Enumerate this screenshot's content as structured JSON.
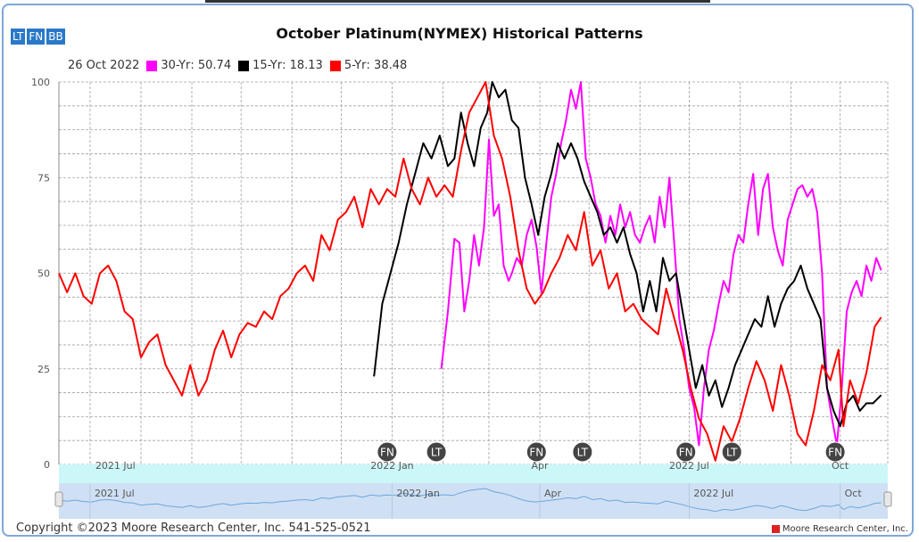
{
  "toolbar": {
    "buttons": [
      {
        "label": "LT"
      },
      {
        "label": "FN"
      },
      {
        "label": "BB"
      }
    ]
  },
  "footer": {
    "copyright": "Copyright ©2023 Moore Research Center, Inc. 541-525-0521",
    "credit": "Moore Research Center, Inc."
  },
  "colors": {
    "y30": "#ff00ff",
    "y15": "#000000",
    "y5": "#ff0000",
    "navigator_band": "#ccf7f9",
    "navigator_fill": "#cfe0f4",
    "navigator_line": "#6aa6dc",
    "marker": "#444444"
  },
  "chart_data": {
    "type": "line",
    "title": "October Platinum(NYMEX) Historical Patterns",
    "legend_date": "26 Oct 2022",
    "legend_placement": "top-left",
    "grid": true,
    "ylim": [
      0,
      100
    ],
    "yticks": [
      "0",
      "25",
      "50",
      "75",
      "100"
    ],
    "xlim": [
      "2021-06-12",
      "2022-10-30"
    ],
    "xticks": [
      {
        "date": "2021-07-01",
        "label": "2021 Jul"
      },
      {
        "date": "2022-01-01",
        "label": "2022 Jan"
      },
      {
        "date": "2022-04-01",
        "label": "Apr"
      },
      {
        "date": "2022-07-01",
        "label": "2022 Jul"
      },
      {
        "date": "2022-10-01",
        "label": "Oct"
      }
    ],
    "navigator_ticks": [
      "2021 Jul",
      "2022 Jan",
      "Apr",
      "2022 Jul",
      "Oct"
    ],
    "markers": [
      {
        "label": "FN",
        "date": "2021-12-29"
      },
      {
        "label": "LT",
        "date": "2022-01-28"
      },
      {
        "label": "FN",
        "date": "2022-03-30"
      },
      {
        "label": "LT",
        "date": "2022-04-27"
      },
      {
        "label": "FN",
        "date": "2022-06-29"
      },
      {
        "label": "LT",
        "date": "2022-07-27"
      },
      {
        "label": "FN",
        "date": "2022-09-28"
      }
    ],
    "series": [
      {
        "name": "30-Yr",
        "value": "50.74",
        "color": "#ff00ff",
        "points": [
          [
            "2022-01-31",
            25
          ],
          [
            "2022-02-04",
            40
          ],
          [
            "2022-02-08",
            59
          ],
          [
            "2022-02-11",
            58
          ],
          [
            "2022-02-14",
            40
          ],
          [
            "2022-02-17",
            48
          ],
          [
            "2022-02-20",
            60
          ],
          [
            "2022-02-23",
            52
          ],
          [
            "2022-02-26",
            62
          ],
          [
            "2022-03-01",
            85
          ],
          [
            "2022-03-04",
            65
          ],
          [
            "2022-03-07",
            68
          ],
          [
            "2022-03-10",
            52
          ],
          [
            "2022-03-13",
            48
          ],
          [
            "2022-03-15",
            50
          ],
          [
            "2022-03-18",
            54
          ],
          [
            "2022-03-21",
            52
          ],
          [
            "2022-03-24",
            60
          ],
          [
            "2022-03-27",
            64
          ],
          [
            "2022-03-30",
            57
          ],
          [
            "2022-04-02",
            45
          ],
          [
            "2022-04-05",
            58
          ],
          [
            "2022-04-08",
            70
          ],
          [
            "2022-04-11",
            76
          ],
          [
            "2022-04-14",
            84
          ],
          [
            "2022-04-17",
            90
          ],
          [
            "2022-04-20",
            98
          ],
          [
            "2022-04-23",
            93
          ],
          [
            "2022-04-26",
            100
          ],
          [
            "2022-04-29",
            80
          ],
          [
            "2022-05-02",
            75
          ],
          [
            "2022-05-05",
            68
          ],
          [
            "2022-05-08",
            65
          ],
          [
            "2022-05-11",
            58
          ],
          [
            "2022-05-14",
            65
          ],
          [
            "2022-05-17",
            60
          ],
          [
            "2022-05-20",
            68
          ],
          [
            "2022-05-23",
            62
          ],
          [
            "2022-05-26",
            66
          ],
          [
            "2022-05-29",
            60
          ],
          [
            "2022-06-01",
            58
          ],
          [
            "2022-06-04",
            62
          ],
          [
            "2022-06-07",
            65
          ],
          [
            "2022-06-10",
            58
          ],
          [
            "2022-06-13",
            70
          ],
          [
            "2022-06-16",
            62
          ],
          [
            "2022-06-19",
            75
          ],
          [
            "2022-06-22",
            57
          ],
          [
            "2022-06-25",
            38
          ],
          [
            "2022-06-28",
            30
          ],
          [
            "2022-07-01",
            20
          ],
          [
            "2022-07-04",
            15
          ],
          [
            "2022-07-07",
            5
          ],
          [
            "2022-07-10",
            20
          ],
          [
            "2022-07-13",
            30
          ],
          [
            "2022-07-16",
            35
          ],
          [
            "2022-07-19",
            42
          ],
          [
            "2022-07-22",
            48
          ],
          [
            "2022-07-25",
            45
          ],
          [
            "2022-07-28",
            55
          ],
          [
            "2022-07-31",
            60
          ],
          [
            "2022-08-03",
            58
          ],
          [
            "2022-08-06",
            68
          ],
          [
            "2022-08-09",
            76
          ],
          [
            "2022-08-12",
            60
          ],
          [
            "2022-08-15",
            72
          ],
          [
            "2022-08-18",
            76
          ],
          [
            "2022-08-21",
            62
          ],
          [
            "2022-08-24",
            56
          ],
          [
            "2022-08-27",
            52
          ],
          [
            "2022-08-30",
            64
          ],
          [
            "2022-09-02",
            68
          ],
          [
            "2022-09-05",
            72
          ],
          [
            "2022-09-08",
            73
          ],
          [
            "2022-09-11",
            70
          ],
          [
            "2022-09-14",
            72
          ],
          [
            "2022-09-17",
            66
          ],
          [
            "2022-09-20",
            50
          ],
          [
            "2022-09-23",
            20
          ],
          [
            "2022-09-26",
            12
          ],
          [
            "2022-09-29",
            5
          ],
          [
            "2022-10-02",
            20
          ],
          [
            "2022-10-05",
            40
          ],
          [
            "2022-10-08",
            45
          ],
          [
            "2022-10-11",
            48
          ],
          [
            "2022-10-14",
            44
          ],
          [
            "2022-10-17",
            52
          ],
          [
            "2022-10-20",
            48
          ],
          [
            "2022-10-23",
            54
          ],
          [
            "2022-10-26",
            50.74
          ]
        ]
      },
      {
        "name": "15-Yr",
        "value": "18.13",
        "color": "#000000",
        "points": [
          [
            "2021-12-21",
            23
          ],
          [
            "2021-12-26",
            42
          ],
          [
            "2021-12-31",
            50
          ],
          [
            "2022-01-05",
            58
          ],
          [
            "2022-01-10",
            68
          ],
          [
            "2022-01-15",
            76
          ],
          [
            "2022-01-20",
            84
          ],
          [
            "2022-01-25",
            80
          ],
          [
            "2022-01-30",
            86
          ],
          [
            "2022-02-04",
            78
          ],
          [
            "2022-02-08",
            80
          ],
          [
            "2022-02-12",
            92
          ],
          [
            "2022-02-16",
            84
          ],
          [
            "2022-02-20",
            78
          ],
          [
            "2022-02-24",
            88
          ],
          [
            "2022-02-28",
            92
          ],
          [
            "2022-03-03",
            100
          ],
          [
            "2022-03-07",
            96
          ],
          [
            "2022-03-11",
            98
          ],
          [
            "2022-03-15",
            90
          ],
          [
            "2022-03-19",
            88
          ],
          [
            "2022-03-23",
            75
          ],
          [
            "2022-03-27",
            68
          ],
          [
            "2022-03-31",
            60
          ],
          [
            "2022-04-04",
            70
          ],
          [
            "2022-04-08",
            76
          ],
          [
            "2022-04-12",
            84
          ],
          [
            "2022-04-16",
            80
          ],
          [
            "2022-04-20",
            84
          ],
          [
            "2022-04-24",
            80
          ],
          [
            "2022-04-28",
            74
          ],
          [
            "2022-05-02",
            70
          ],
          [
            "2022-05-06",
            66
          ],
          [
            "2022-05-10",
            60
          ],
          [
            "2022-05-14",
            62
          ],
          [
            "2022-05-18",
            58
          ],
          [
            "2022-05-22",
            62
          ],
          [
            "2022-05-26",
            55
          ],
          [
            "2022-05-30",
            50
          ],
          [
            "2022-06-03",
            40
          ],
          [
            "2022-06-07",
            48
          ],
          [
            "2022-06-11",
            40
          ],
          [
            "2022-06-15",
            54
          ],
          [
            "2022-06-19",
            48
          ],
          [
            "2022-06-23",
            50
          ],
          [
            "2022-06-27",
            40
          ],
          [
            "2022-07-01",
            30
          ],
          [
            "2022-07-05",
            20
          ],
          [
            "2022-07-09",
            26
          ],
          [
            "2022-07-13",
            18
          ],
          [
            "2022-07-17",
            22
          ],
          [
            "2022-07-21",
            15
          ],
          [
            "2022-07-25",
            20
          ],
          [
            "2022-07-29",
            26
          ],
          [
            "2022-08-02",
            30
          ],
          [
            "2022-08-06",
            34
          ],
          [
            "2022-08-10",
            38
          ],
          [
            "2022-08-14",
            36
          ],
          [
            "2022-08-18",
            44
          ],
          [
            "2022-08-22",
            36
          ],
          [
            "2022-08-26",
            42
          ],
          [
            "2022-08-30",
            46
          ],
          [
            "2022-09-03",
            48
          ],
          [
            "2022-09-07",
            52
          ],
          [
            "2022-09-11",
            46
          ],
          [
            "2022-09-15",
            42
          ],
          [
            "2022-09-19",
            38
          ],
          [
            "2022-09-23",
            20
          ],
          [
            "2022-09-27",
            14
          ],
          [
            "2022-10-01",
            10
          ],
          [
            "2022-10-05",
            16
          ],
          [
            "2022-10-09",
            18
          ],
          [
            "2022-10-13",
            14
          ],
          [
            "2022-10-17",
            16
          ],
          [
            "2022-10-21",
            16
          ],
          [
            "2022-10-26",
            18.13
          ]
        ]
      },
      {
        "name": "5-Yr",
        "value": "38.48",
        "color": "#ff0000",
        "points": [
          [
            "2021-06-12",
            50
          ],
          [
            "2021-06-17",
            45
          ],
          [
            "2021-06-22",
            50
          ],
          [
            "2021-06-27",
            44
          ],
          [
            "2021-07-02",
            42
          ],
          [
            "2021-07-07",
            50
          ],
          [
            "2021-07-12",
            52
          ],
          [
            "2021-07-17",
            48
          ],
          [
            "2021-07-22",
            40
          ],
          [
            "2021-07-27",
            38
          ],
          [
            "2021-08-01",
            28
          ],
          [
            "2021-08-06",
            32
          ],
          [
            "2021-08-11",
            34
          ],
          [
            "2021-08-16",
            26
          ],
          [
            "2021-08-21",
            22
          ],
          [
            "2021-08-26",
            18
          ],
          [
            "2021-08-31",
            26
          ],
          [
            "2021-09-05",
            18
          ],
          [
            "2021-09-10",
            22
          ],
          [
            "2021-09-15",
            30
          ],
          [
            "2021-09-20",
            35
          ],
          [
            "2021-09-25",
            28
          ],
          [
            "2021-09-30",
            34
          ],
          [
            "2021-10-05",
            37
          ],
          [
            "2021-10-10",
            36
          ],
          [
            "2021-10-15",
            40
          ],
          [
            "2021-10-20",
            38
          ],
          [
            "2021-10-25",
            44
          ],
          [
            "2021-10-30",
            46
          ],
          [
            "2021-11-04",
            50
          ],
          [
            "2021-11-09",
            52
          ],
          [
            "2021-11-14",
            48
          ],
          [
            "2021-11-19",
            60
          ],
          [
            "2021-11-24",
            56
          ],
          [
            "2021-11-29",
            64
          ],
          [
            "2021-12-04",
            66
          ],
          [
            "2021-12-09",
            70
          ],
          [
            "2021-12-14",
            62
          ],
          [
            "2021-12-19",
            72
          ],
          [
            "2021-12-24",
            68
          ],
          [
            "2021-12-29",
            72
          ],
          [
            "2022-01-03",
            70
          ],
          [
            "2022-01-08",
            80
          ],
          [
            "2022-01-13",
            72
          ],
          [
            "2022-01-18",
            68
          ],
          [
            "2022-01-23",
            75
          ],
          [
            "2022-01-28",
            70
          ],
          [
            "2022-02-02",
            73
          ],
          [
            "2022-02-07",
            70
          ],
          [
            "2022-02-12",
            82
          ],
          [
            "2022-02-17",
            92
          ],
          [
            "2022-02-22",
            96
          ],
          [
            "2022-02-27",
            100
          ],
          [
            "2022-03-04",
            86
          ],
          [
            "2022-03-09",
            80
          ],
          [
            "2022-03-14",
            70
          ],
          [
            "2022-03-19",
            56
          ],
          [
            "2022-03-24",
            46
          ],
          [
            "2022-03-29",
            42
          ],
          [
            "2022-04-03",
            45
          ],
          [
            "2022-04-08",
            50
          ],
          [
            "2022-04-13",
            54
          ],
          [
            "2022-04-18",
            60
          ],
          [
            "2022-04-23",
            56
          ],
          [
            "2022-04-28",
            66
          ],
          [
            "2022-05-03",
            52
          ],
          [
            "2022-05-08",
            56
          ],
          [
            "2022-05-13",
            46
          ],
          [
            "2022-05-18",
            50
          ],
          [
            "2022-05-23",
            40
          ],
          [
            "2022-05-28",
            42
          ],
          [
            "2022-06-02",
            38
          ],
          [
            "2022-06-07",
            36
          ],
          [
            "2022-06-12",
            34
          ],
          [
            "2022-06-17",
            46
          ],
          [
            "2022-06-22",
            38
          ],
          [
            "2022-06-27",
            30
          ],
          [
            "2022-07-02",
            20
          ],
          [
            "2022-07-07",
            12
          ],
          [
            "2022-07-12",
            8
          ],
          [
            "2022-07-17",
            1
          ],
          [
            "2022-07-22",
            10
          ],
          [
            "2022-07-27",
            6
          ],
          [
            "2022-08-01",
            12
          ],
          [
            "2022-08-06",
            20
          ],
          [
            "2022-08-11",
            27
          ],
          [
            "2022-08-16",
            22
          ],
          [
            "2022-08-21",
            14
          ],
          [
            "2022-08-26",
            26
          ],
          [
            "2022-08-31",
            18
          ],
          [
            "2022-09-05",
            8
          ],
          [
            "2022-09-10",
            5
          ],
          [
            "2022-09-15",
            14
          ],
          [
            "2022-09-20",
            26
          ],
          [
            "2022-09-25",
            22
          ],
          [
            "2022-09-30",
            30
          ],
          [
            "2022-10-03",
            10
          ],
          [
            "2022-10-07",
            22
          ],
          [
            "2022-10-12",
            16
          ],
          [
            "2022-10-17",
            24
          ],
          [
            "2022-10-22",
            36
          ],
          [
            "2022-10-26",
            38.48
          ]
        ]
      }
    ]
  }
}
